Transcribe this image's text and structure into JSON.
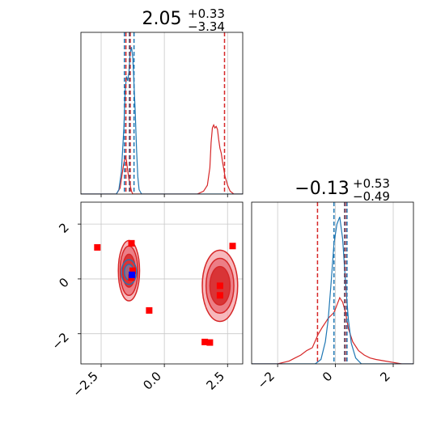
{
  "figure": {
    "type": "corner-plot",
    "colors": {
      "red": "#d62728",
      "red_light": "#f4a0a6",
      "blue": "#1f77b4",
      "dark": "#4a4a6a",
      "grid": "#c8c8c8",
      "marker_red": "#ff0000",
      "marker_blue": "#0000ff"
    }
  },
  "chart_data": [
    {
      "panel": "top-left-histogram",
      "type": "line",
      "title_main": "2.05",
      "title_sup": "+0.33",
      "title_sub": "−3.34",
      "xlim": [
        -3.3,
        3.1
      ],
      "grid": true,
      "xticks": [
        -2.5,
        0.0,
        2.5
      ],
      "series": [
        {
          "color": "#d62728",
          "x": [
            -3.3,
            -1.9,
            -1.75,
            -1.7,
            -1.65,
            -1.6,
            -1.55,
            -1.5,
            -1.45,
            -1.4,
            -1.35,
            -1.3,
            -1.25,
            -1.2,
            -1.15,
            -1.1,
            -1.05,
            -1.0,
            1.3,
            1.55,
            1.7,
            1.8,
            1.85,
            1.9,
            1.95,
            2.0,
            2.05,
            2.1,
            2.15,
            2.2,
            2.25,
            2.3,
            2.35,
            2.4,
            2.5,
            2.6,
            2.75,
            3.1
          ],
          "y": [
            0.0,
            0.0,
            0.04,
            0.1,
            0.16,
            0.21,
            0.25,
            0.23,
            0.16,
            0.1,
            0.06,
            0.02,
            0.0,
            0.0,
            0.0,
            0.0,
            0.0,
            0.0,
            0.0,
            0.02,
            0.06,
            0.18,
            0.35,
            0.45,
            0.47,
            0.45,
            0.46,
            0.44,
            0.37,
            0.31,
            0.28,
            0.22,
            0.17,
            0.12,
            0.06,
            0.02,
            0.0,
            0.0
          ]
        },
        {
          "color": "#1f77b4",
          "x": [
            -3.3,
            -1.9,
            -1.8,
            -1.7,
            -1.6,
            -1.55,
            -1.5,
            -1.45,
            -1.4,
            -1.35,
            -1.3,
            -1.25,
            -1.2,
            -1.15,
            -1.1,
            -1.05,
            -1.0,
            -0.9,
            3.1
          ],
          "y": [
            0.0,
            0.0,
            0.03,
            0.15,
            0.45,
            0.7,
            0.8,
            0.77,
            0.83,
            0.96,
            1.0,
            0.93,
            0.75,
            0.55,
            0.3,
            0.12,
            0.03,
            0.0,
            0.0
          ]
        }
      ],
      "quantile_lines": [
        {
          "x": -1.52,
          "color": "#d62728"
        },
        {
          "x": -1.35,
          "color": "#d62728"
        },
        {
          "x": 2.38,
          "color": "#d62728"
        },
        {
          "x": -1.58,
          "color": "#1f77b4"
        },
        {
          "x": -1.38,
          "color": "#4a4a6a"
        },
        {
          "x": -1.2,
          "color": "#1f77b4"
        }
      ]
    },
    {
      "panel": "bottom-left-2d",
      "type": "scatter",
      "xlim": [
        -3.3,
        3.1
      ],
      "ylim": [
        -3.1,
        2.8
      ],
      "grid": true,
      "xticks": [
        -2.5,
        0.0,
        2.5
      ],
      "yticks": [
        -2,
        0,
        2
      ],
      "red_squares": [
        {
          "x": -2.65,
          "y": 1.15
        },
        {
          "x": -1.3,
          "y": 1.3
        },
        {
          "x": -1.25,
          "y": 0.3
        },
        {
          "x": -1.3,
          "y": 0.05
        },
        {
          "x": -0.6,
          "y": -1.15
        },
        {
          "x": 1.6,
          "y": -2.3
        },
        {
          "x": 1.8,
          "y": -2.32
        },
        {
          "x": 2.2,
          "y": -0.25
        },
        {
          "x": 2.2,
          "y": -0.6
        },
        {
          "x": 2.7,
          "y": 1.2
        }
      ],
      "blue_squares": [
        {
          "x": -1.28,
          "y": 0.15
        }
      ],
      "contour_groups": [
        {
          "color": "#d62728",
          "centers": [
            {
              "cx": -1.4,
              "cy": 0.3,
              "rx": [
                0.42,
                0.35,
                0.25
              ],
              "ry": [
                1.1,
                0.9,
                0.6
              ]
            },
            {
              "cx": 2.2,
              "cy": -0.25,
              "rx": [
                0.7,
                0.55,
                0.4
              ],
              "ry": [
                1.3,
                1.0,
                0.7
              ]
            }
          ]
        },
        {
          "color": "#1f77b4",
          "centers": [
            {
              "cx": -1.4,
              "cy": 0.25,
              "rx": [
                0.3,
                0.18
              ],
              "ry": [
                0.45,
                0.28
              ]
            }
          ]
        }
      ]
    },
    {
      "panel": "bottom-right-histogram",
      "type": "line",
      "title_main": "−0.13",
      "title_sup": "+0.53",
      "title_sub": "−0.49",
      "xlim": [
        -2.9,
        2.7
      ],
      "grid": true,
      "xticks": [
        -2,
        0,
        2
      ],
      "series": [
        {
          "color": "#d62728",
          "x": [
            -2.9,
            -2.0,
            -1.8,
            -1.6,
            -1.4,
            -1.2,
            -1.0,
            -0.8,
            -0.6,
            -0.45,
            -0.35,
            -0.25,
            -0.15,
            -0.05,
            0.05,
            0.15,
            0.25,
            0.35,
            0.45,
            0.6,
            0.8,
            1.0,
            1.2,
            1.4,
            1.7,
            2.0,
            2.3,
            2.7
          ],
          "y": [
            0.0,
            0.0,
            0.01,
            0.02,
            0.04,
            0.06,
            0.09,
            0.11,
            0.2,
            0.25,
            0.28,
            0.31,
            0.33,
            0.35,
            0.4,
            0.45,
            0.42,
            0.35,
            0.24,
            0.15,
            0.09,
            0.06,
            0.04,
            0.03,
            0.02,
            0.01,
            0.0,
            0.0
          ]
        },
        {
          "color": "#1f77b4",
          "x": [
            -2.9,
            -0.7,
            -0.5,
            -0.35,
            -0.25,
            -0.15,
            -0.05,
            0.05,
            0.15,
            0.25,
            0.35,
            0.45,
            0.55,
            0.7,
            0.9,
            2.7
          ],
          "y": [
            0.0,
            0.0,
            0.03,
            0.15,
            0.3,
            0.55,
            0.82,
            0.95,
            1.0,
            0.85,
            0.55,
            0.3,
            0.14,
            0.04,
            0.0,
            0.0
          ]
        }
      ],
      "quantile_lines": [
        {
          "x": -0.62,
          "color": "#d62728"
        },
        {
          "x": 0.32,
          "color": "#d62728"
        },
        {
          "x": 0.38,
          "color": "#d62728"
        },
        {
          "x": -0.05,
          "color": "#1f77b4"
        },
        {
          "x": 0.32,
          "color": "#4a4a6a"
        },
        {
          "x": 0.4,
          "color": "#1f77b4"
        }
      ]
    }
  ]
}
